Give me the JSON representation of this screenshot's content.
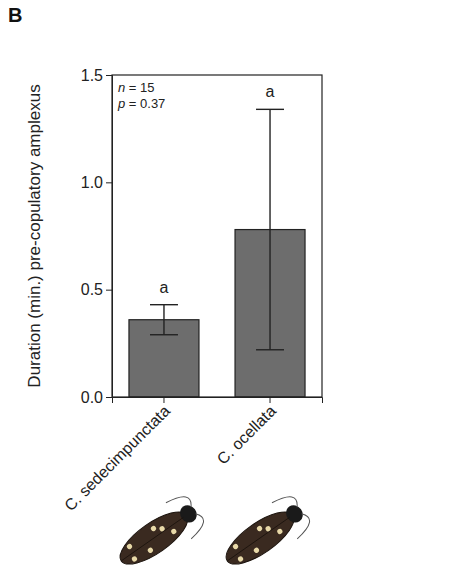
{
  "chart_data": {
    "type": "bar",
    "panel": "B",
    "y_label": "Duration (min.) pre-copulatory amplexus",
    "categories": [
      "C. sedecimpunctata",
      "C. ocellata"
    ],
    "values": [
      0.36,
      0.78
    ],
    "errors": [
      0.07,
      0.56
    ],
    "significance_labels": [
      "a",
      "a"
    ],
    "annotations": [
      "n = 15",
      "p = 0.37"
    ],
    "color": "#6d6d6d",
    "ylim": [
      0,
      1.5
    ],
    "yticks": [
      {
        "value": 0,
        "label": "0.0"
      },
      0.5,
      {
        "value": 1,
        "label": "1.0"
      },
      1.5
    ],
    "grid": false
  }
}
